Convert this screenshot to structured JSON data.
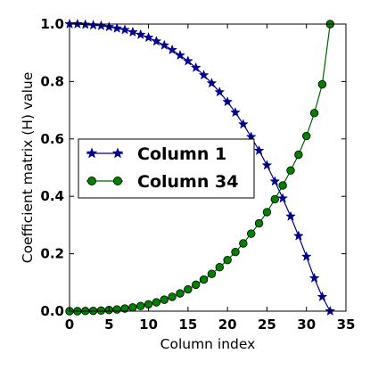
{
  "chart_data": {
    "type": "line",
    "title": "",
    "xlabel": "Column index",
    "ylabel": "Coefficient matrix (H) value",
    "xlim": [
      0,
      35
    ],
    "ylim": [
      0,
      1.0
    ],
    "xticks": [
      "0",
      "5",
      "10",
      "15",
      "20",
      "25",
      "30",
      "35"
    ],
    "yticks": [
      "0.0",
      "0.2",
      "0.4",
      "0.6",
      "0.8",
      "1.0"
    ],
    "grid": false,
    "legend_position": "center-left",
    "x": [
      0,
      1,
      2,
      3,
      4,
      5,
      6,
      7,
      8,
      9,
      10,
      11,
      12,
      13,
      14,
      15,
      16,
      17,
      18,
      19,
      20,
      21,
      22,
      23,
      24,
      25,
      26,
      27,
      28,
      29,
      30,
      31,
      32,
      33
    ],
    "series": [
      {
        "name": "Column 1",
        "color": "#00008b",
        "marker": "star",
        "values": [
          1.0,
          1.0,
          0.998,
          0.996,
          0.994,
          0.99,
          0.985,
          0.98,
          0.972,
          0.963,
          0.953,
          0.94,
          0.926,
          0.91,
          0.891,
          0.871,
          0.848,
          0.822,
          0.794,
          0.763,
          0.729,
          0.692,
          0.651,
          0.607,
          0.559,
          0.508,
          0.452,
          0.393,
          0.33,
          0.262,
          0.19,
          0.115,
          0.05,
          0.0
        ]
      },
      {
        "name": "Column 34",
        "color": "#006400",
        "marker": "circle",
        "values": [
          0.0,
          0.0,
          0.0005,
          0.001,
          0.002,
          0.004,
          0.006,
          0.009,
          0.013,
          0.018,
          0.024,
          0.031,
          0.04,
          0.05,
          0.062,
          0.076,
          0.092,
          0.11,
          0.13,
          0.153,
          0.178,
          0.206,
          0.236,
          0.27,
          0.306,
          0.345,
          0.39,
          0.438,
          0.49,
          0.545,
          0.61,
          0.69,
          0.79,
          1.0
        ]
      }
    ]
  }
}
